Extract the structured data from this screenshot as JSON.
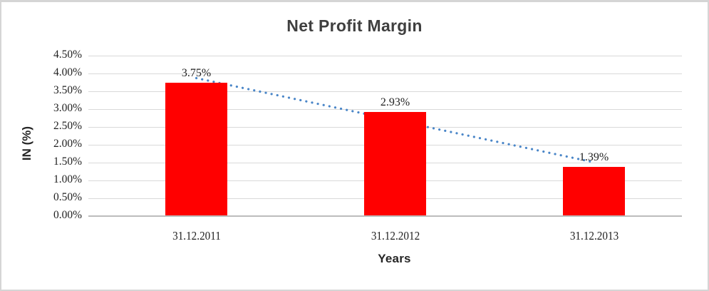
{
  "frame": {
    "background": "#ffffff",
    "border_color": "#d5d5d5"
  },
  "chart_data": {
    "type": "bar",
    "title": "Net Profit Margin",
    "categories": [
      "31.12.2011",
      "31.12.2012",
      "31.12.2013"
    ],
    "values": [
      3.75,
      2.93,
      1.39
    ],
    "data_labels": [
      "3.75%",
      "2.93%",
      "1.39%"
    ],
    "xlabel": "Years",
    "ylabel": "IN (%)",
    "ylim": [
      0,
      4.5
    ],
    "y_tick_step": 0.5,
    "y_tick_labels": [
      "0.00%",
      "0.50%",
      "1.00%",
      "1.50%",
      "2.00%",
      "2.50%",
      "3.00%",
      "3.50%",
      "4.00%",
      "4.50%"
    ],
    "grid": true,
    "legend": "none",
    "bar_color": "#ff0000",
    "gridline_color": "#d9d9d9",
    "trendline": {
      "type": "linear",
      "style": "dotted",
      "color": "#4a86c8"
    },
    "text_color": "#1f1f1f",
    "title_color": "#3f3f3f"
  }
}
